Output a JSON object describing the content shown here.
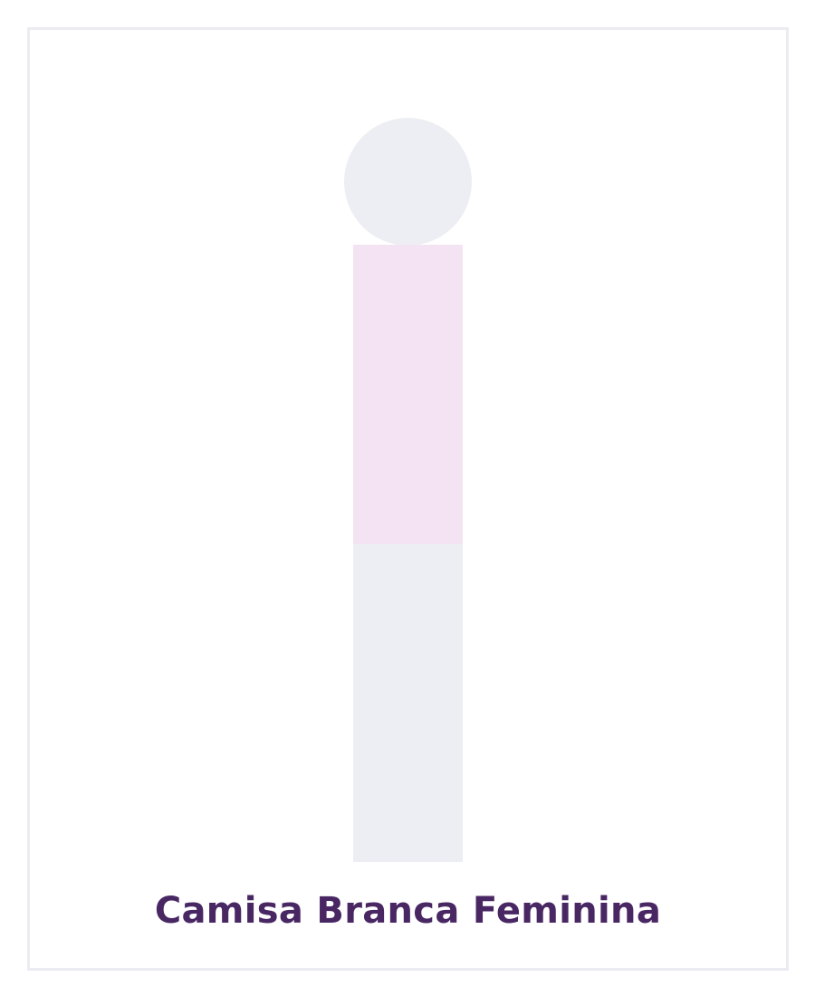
{
  "product": {
    "caption": "Camisa Branca Feminina"
  },
  "figure": {
    "head_color": "#edeef3",
    "shirt_color": "#f4e3f3",
    "legs_color": "#edeef3"
  },
  "theme": {
    "frame_color": "#ebebf2",
    "caption_color": "#482763"
  }
}
